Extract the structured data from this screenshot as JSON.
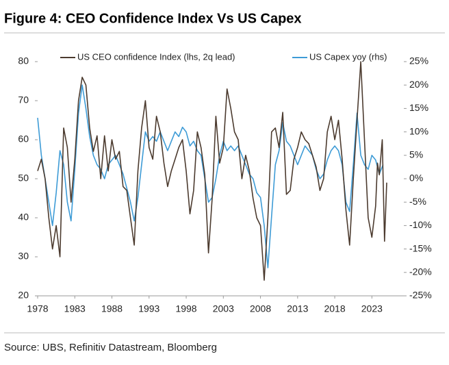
{
  "chart_data": {
    "type": "line",
    "title": "Figure 4: CEO Confidence Index Vs US Capex",
    "source": "Source: UBS, Refinitiv Datastream, Bloomberg",
    "xlim": [
      1978,
      2027.3
    ],
    "xticks": [
      1978,
      1983,
      1988,
      1993,
      1998,
      2003,
      2008,
      2013,
      2018,
      2023
    ],
    "ylim": [
      20,
      80
    ],
    "yticks": [
      20,
      30,
      40,
      50,
      60,
      70,
      80
    ],
    "y2lim": [
      -25,
      25
    ],
    "y2ticks": [
      {
        "value": -25,
        "label": "-25%"
      },
      {
        "value": -20,
        "label": "-20%"
      },
      {
        "value": -15,
        "label": "-15%"
      },
      {
        "value": -10,
        "label": "-10%"
      },
      {
        "value": -5,
        "label": "-5%"
      },
      {
        "value": 0,
        "label": "0%"
      },
      {
        "value": 5,
        "label": "5%"
      },
      {
        "value": 10,
        "label": "10%"
      },
      {
        "value": 15,
        "label": "15%"
      },
      {
        "value": 20,
        "label": "20%"
      },
      {
        "value": 25,
        "label": "25%"
      }
    ],
    "series": [
      {
        "name": "US CEO confidence Index (lhs, 2q lead)",
        "color": "#4b3a2e",
        "axis": "y",
        "x": [
          1978.0,
          1978.5,
          1979.0,
          1979.5,
          1980.0,
          1980.5,
          1981.0,
          1981.5,
          1982.0,
          1982.5,
          1983.0,
          1983.5,
          1984.0,
          1984.5,
          1985.0,
          1985.5,
          1986.0,
          1986.5,
          1987.0,
          1987.5,
          1988.0,
          1988.5,
          1989.0,
          1989.5,
          1990.0,
          1990.5,
          1991.0,
          1991.5,
          1992.0,
          1992.5,
          1993.0,
          1993.5,
          1994.0,
          1994.5,
          1995.0,
          1995.5,
          1996.0,
          1996.5,
          1997.0,
          1997.5,
          1998.0,
          1998.5,
          1999.0,
          1999.5,
          2000.0,
          2000.5,
          2001.0,
          2001.5,
          2002.0,
          2002.5,
          2003.0,
          2003.5,
          2004.0,
          2004.5,
          2005.0,
          2005.5,
          2006.0,
          2006.5,
          2007.0,
          2007.5,
          2008.0,
          2008.5,
          2009.0,
          2009.5,
          2010.0,
          2010.5,
          2011.0,
          2011.5,
          2012.0,
          2012.5,
          2013.0,
          2013.5,
          2014.0,
          2014.5,
          2015.0,
          2015.5,
          2016.0,
          2016.5,
          2017.0,
          2017.5,
          2018.0,
          2018.5,
          2019.0,
          2019.5,
          2020.0,
          2020.5,
          2021.0,
          2021.5,
          2022.0,
          2022.5,
          2023.0,
          2023.5,
          2023.75,
          2024.0,
          2024.4,
          2024.7,
          2025.0
        ],
        "values": [
          52,
          55,
          50,
          40,
          32,
          38,
          30,
          63,
          58,
          44,
          55,
          70,
          76,
          74,
          63,
          57,
          61,
          50,
          61,
          52,
          60,
          55,
          57,
          48,
          47,
          40,
          33,
          52,
          63,
          70,
          58,
          55,
          66,
          62,
          54,
          48,
          52,
          55,
          58,
          60,
          52,
          41,
          47,
          62,
          58,
          51,
          31,
          45,
          66,
          54,
          58,
          73,
          68,
          62,
          60,
          50,
          56,
          52,
          45,
          40,
          38,
          24,
          40,
          62,
          63,
          58,
          67,
          46,
          47,
          55,
          58,
          62,
          60,
          59,
          56,
          53,
          47,
          50,
          62,
          66,
          60,
          65,
          55,
          42,
          33,
          50,
          65,
          80,
          60,
          40,
          35,
          43,
          54,
          51,
          60,
          34,
          49
        ]
      },
      {
        "name": "US Capex yoy (rhs)",
        "color": "#3d9bd6",
        "axis": "y2",
        "x": [
          1978.0,
          1978.5,
          1979.0,
          1979.5,
          1980.0,
          1980.5,
          1981.0,
          1981.5,
          1982.0,
          1982.5,
          1983.0,
          1983.5,
          1984.0,
          1984.5,
          1985.0,
          1985.5,
          1986.0,
          1986.5,
          1987.0,
          1987.5,
          1988.0,
          1988.5,
          1989.0,
          1989.5,
          1990.0,
          1990.5,
          1991.0,
          1991.5,
          1992.0,
          1992.5,
          1993.0,
          1993.5,
          1994.0,
          1994.5,
          1995.0,
          1995.5,
          1996.0,
          1996.5,
          1997.0,
          1997.5,
          1998.0,
          1998.5,
          1999.0,
          1999.5,
          2000.0,
          2000.5,
          2001.0,
          2001.5,
          2002.0,
          2002.5,
          2003.0,
          2003.5,
          2004.0,
          2004.5,
          2005.0,
          2005.5,
          2006.0,
          2006.5,
          2007.0,
          2007.5,
          2008.0,
          2008.5,
          2009.0,
          2009.5,
          2010.0,
          2010.5,
          2011.0,
          2011.5,
          2012.0,
          2012.5,
          2013.0,
          2013.5,
          2014.0,
          2014.5,
          2015.0,
          2015.5,
          2016.0,
          2016.5,
          2017.0,
          2017.5,
          2018.0,
          2018.5,
          2019.0,
          2019.5,
          2020.0,
          2020.5,
          2021.0,
          2021.5,
          2022.0,
          2022.5,
          2023.0,
          2023.5,
          2024.0,
          2024.5
        ],
        "values": [
          13,
          5,
          0,
          -5,
          -10,
          -3,
          6,
          3,
          -5,
          -9,
          2,
          14,
          20,
          15,
          9,
          5,
          3,
          2,
          0,
          3,
          4,
          5,
          3,
          1,
          -2,
          -5,
          -9,
          -4,
          3,
          10,
          8,
          9,
          8,
          10,
          8,
          6,
          8,
          10,
          9,
          11,
          10,
          7,
          8,
          6,
          5,
          0,
          -5,
          -4,
          0,
          5,
          8,
          6,
          7,
          6,
          7,
          5,
          3,
          1,
          0,
          -3,
          -4,
          -10,
          -19,
          -8,
          3,
          6,
          12,
          8,
          7,
          5,
          3,
          5,
          7,
          6,
          5,
          2,
          0,
          1,
          4,
          6,
          7,
          6,
          3,
          -5,
          -7,
          3,
          14,
          5,
          3,
          2,
          5,
          4,
          1,
          3
        ]
      }
    ]
  }
}
